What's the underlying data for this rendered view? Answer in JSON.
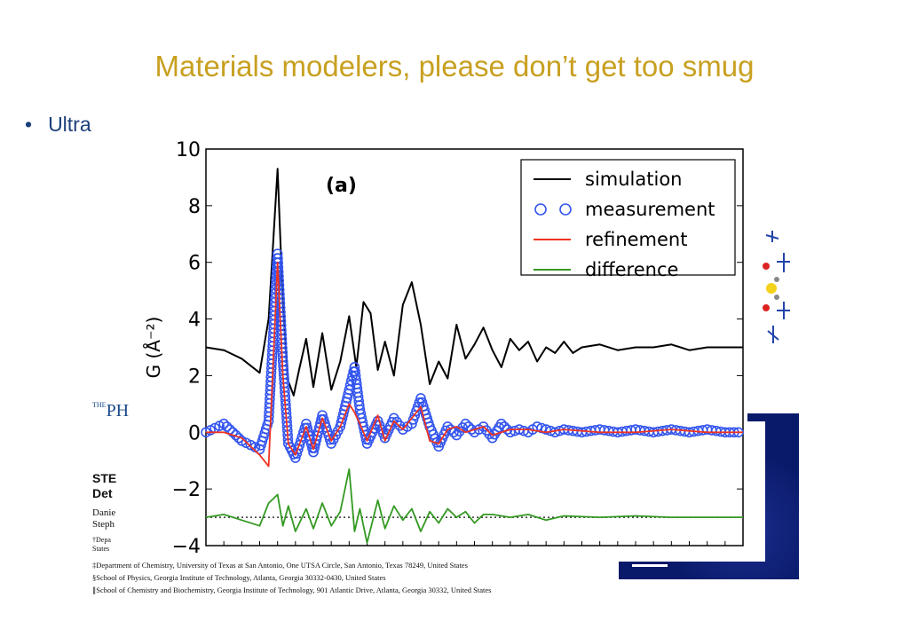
{
  "slide": {
    "title": "Materials modelers, please don’t get too smug",
    "bullet_text": "Ultra"
  },
  "paper": {
    "logo_small": "THE",
    "logo_main": "PH",
    "heading_line1": "STE",
    "heading_line2": "Det",
    "author_line1": "Danie",
    "author_line2": "Steph",
    "aff_line1": "†Depa",
    "aff_line2": "States",
    "affiliations_full": [
      "‡Department of Chemistry, University of Texas at San Antonio, One UTSA Circle, San Antonio, Texas 78249, United States",
      "§School of Physics, Georgia Institute of Technology, Atlanta, Georgia 30332-0430, United States",
      "∥School of Chemistry and Biochemistry, Georgia Institute of Technology, 901 Atlantic Drive, Atlanta, Georgia 30332, United States"
    ]
  },
  "chart_data": {
    "type": "line",
    "panel_label": "(a)",
    "ylabel": "G (Å⁻²)",
    "xlabel": "",
    "ylim": [
      -4,
      10
    ],
    "xlim": [
      0,
      30
    ],
    "yticks": [
      -4,
      -2,
      0,
      2,
      4,
      6,
      8,
      10
    ],
    "legend_position": "top-right",
    "series": [
      {
        "name": "simulation",
        "color": "#000000",
        "style": "line",
        "offset": 0,
        "x": [
          0,
          1,
          2,
          3,
          3.5,
          4,
          4.3,
          4.6,
          4.9,
          5.2,
          5.6,
          6,
          6.5,
          7,
          7.5,
          8,
          8.4,
          8.8,
          9.2,
          9.6,
          10,
          10.5,
          11,
          11.5,
          12,
          12.5,
          13,
          13.5,
          14,
          14.5,
          15,
          15.5,
          16,
          16.5,
          17,
          17.5,
          18,
          18.5,
          19,
          19.5,
          20,
          20.5,
          21,
          22,
          23,
          24,
          25,
          26,
          27,
          28,
          29,
          30
        ],
        "values": [
          3,
          2.9,
          2.6,
          2.1,
          4,
          9.3,
          4.5,
          1.8,
          1.3,
          2.2,
          3.3,
          1.6,
          3.5,
          1.5,
          2.5,
          4.1,
          2.3,
          4.6,
          4.2,
          2.2,
          3.2,
          2.0,
          4.5,
          5.3,
          3.8,
          1.7,
          2.5,
          1.9,
          3.8,
          2.6,
          3.1,
          3.7,
          2.9,
          2.3,
          3.3,
          2.9,
          3.2,
          2.5,
          3.0,
          2.8,
          3.2,
          2.8,
          3.0,
          3.1,
          2.9,
          3.0,
          3.0,
          3.1,
          2.9,
          3.0,
          3.0,
          3.0
        ]
      },
      {
        "name": "measurement",
        "color": "#3355ee",
        "style": "circles",
        "offset": 0,
        "x": [
          0,
          1,
          2,
          3,
          3.5,
          4,
          4.3,
          4.6,
          5,
          5.6,
          6,
          6.5,
          7,
          7.5,
          8,
          8.3,
          8.6,
          9,
          9.6,
          10,
          10.5,
          11,
          11.5,
          12,
          12.5,
          13,
          13.5,
          14,
          14.5,
          15,
          15.5,
          16,
          16.5,
          17,
          17.5,
          18,
          18.5,
          19,
          19.5,
          20,
          21,
          22,
          23,
          24,
          25,
          26,
          27,
          28,
          29,
          30
        ],
        "values": [
          0,
          0.3,
          -0.3,
          -0.6,
          0.4,
          6.3,
          2.5,
          -0.4,
          -0.9,
          0.3,
          -0.7,
          0.6,
          -0.4,
          0.2,
          1.5,
          2.3,
          0.8,
          -0.4,
          0.4,
          -0.2,
          0.5,
          0.1,
          0.3,
          1.2,
          0.2,
          -0.5,
          0.2,
          -0.1,
          0.3,
          0,
          0.2,
          -0.2,
          0.3,
          0,
          0.1,
          0,
          0.2,
          0.1,
          0,
          0.1,
          0,
          0.1,
          0,
          0.1,
          0,
          0.1,
          0,
          0.1,
          0,
          0
        ]
      },
      {
        "name": "refinement",
        "color": "#ee3322",
        "style": "line",
        "offset": 0,
        "x": [
          0,
          1,
          2,
          3,
          3.5,
          4,
          4.3,
          4.6,
          5,
          5.6,
          6,
          6.5,
          7,
          7.5,
          8,
          8.3,
          8.6,
          9,
          9.6,
          10,
          10.5,
          11,
          11.5,
          12,
          12.5,
          13,
          13.5,
          14,
          14.5,
          15,
          15.5,
          16,
          17,
          18,
          19,
          20,
          22,
          24,
          26,
          28,
          30
        ],
        "values": [
          0,
          0,
          -0.2,
          -0.8,
          -1.2,
          6.0,
          2.0,
          -0.4,
          -0.8,
          0.2,
          -0.6,
          0.5,
          -0.3,
          0.2,
          1.0,
          0.7,
          0.3,
          -0.3,
          0.6,
          -0.3,
          0.4,
          0.1,
          0.5,
          0.9,
          -0.3,
          -0.4,
          0.1,
          0.2,
          0,
          0.1,
          0.2,
          -0.1,
          0.1,
          0.1,
          0,
          0.1,
          0,
          0,
          0.1,
          0,
          0
        ]
      },
      {
        "name": "difference",
        "color": "#339922",
        "style": "line",
        "offset": -3,
        "x": [
          0,
          1,
          2,
          3,
          3.5,
          4,
          4.3,
          4.6,
          5,
          5.6,
          6,
          6.5,
          7,
          7.5,
          8,
          8.3,
          8.6,
          9,
          9.6,
          10,
          10.5,
          11,
          11.5,
          12,
          12.5,
          13,
          13.5,
          14,
          14.5,
          15,
          15.5,
          16,
          17,
          18,
          19,
          20,
          22,
          24,
          26,
          28,
          30
        ],
        "values": [
          0,
          0.1,
          -0.1,
          -0.3,
          0.5,
          0.8,
          -0.3,
          0.4,
          -0.5,
          0.3,
          -0.4,
          0.5,
          -0.3,
          0.2,
          1.7,
          -0.5,
          0.3,
          -0.9,
          0.6,
          -0.4,
          0.4,
          -0.1,
          0.3,
          -0.5,
          0.2,
          -0.2,
          0.3,
          0,
          0.2,
          -0.2,
          0.1,
          0.1,
          0,
          0.1,
          -0.1,
          0.05,
          0,
          0.05,
          0,
          0,
          0
        ]
      }
    ],
    "zero_reference": {
      "y": -3,
      "color": "#333333",
      "style": "dotted"
    }
  }
}
